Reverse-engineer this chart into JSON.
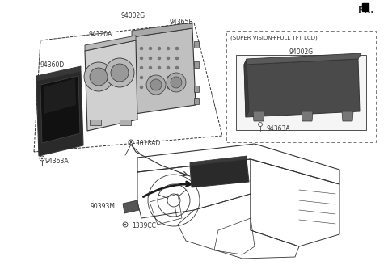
{
  "bg_color": "#ffffff",
  "line_color": "#333333",
  "dark_fill": "#4a4a4a",
  "mid_fill": "#888888",
  "light_fill": "#bbbbbb",
  "very_light_fill": "#e0e0e0",
  "fr_text": "FR.",
  "label_94002G_main": "94002G",
  "label_94365B": "94365B",
  "label_94120A": "94120A",
  "label_94360D": "94360D",
  "label_94363A_left": "94363A",
  "label_1018AD": "1018AD",
  "label_90393M": "90393M",
  "label_1339CC": "1339CC",
  "label_94002G_sv": "94002G",
  "label_94363A_sv": "94363A",
  "super_vision_text": "(SUPER VISION+FULL TFT LCD)",
  "font_size_label": 5.5,
  "font_size_fr": 7.5
}
